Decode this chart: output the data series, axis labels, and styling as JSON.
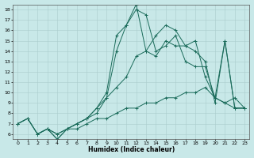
{
  "title": "",
  "xlabel": "Humidex (Indice chaleur)",
  "xlim": [
    -0.5,
    23.5
  ],
  "ylim": [
    5.5,
    18.5
  ],
  "yticks": [
    6,
    7,
    8,
    9,
    10,
    11,
    12,
    13,
    14,
    15,
    16,
    17,
    18
  ],
  "xticks": [
    0,
    1,
    2,
    3,
    4,
    5,
    6,
    7,
    8,
    9,
    10,
    11,
    12,
    13,
    14,
    15,
    16,
    17,
    18,
    19,
    20,
    21,
    22,
    23
  ],
  "bg_color": "#c8e8e8",
  "grid_color": "#aacccc",
  "line_color": "#1a6b5a",
  "lines": [
    {
      "x": [
        0,
        1,
        2,
        3,
        4,
        5,
        6,
        7,
        8,
        9,
        10,
        11,
        12,
        13,
        14,
        15,
        16,
        17,
        18,
        19,
        20,
        21,
        22,
        23
      ],
      "y": [
        7.0,
        7.5,
        6.0,
        6.5,
        6.0,
        6.5,
        6.5,
        7.0,
        7.5,
        7.5,
        8.0,
        8.5,
        8.5,
        9.0,
        9.0,
        9.5,
        9.5,
        10.0,
        10.0,
        10.5,
        9.5,
        9.0,
        8.5,
        8.5
      ]
    },
    {
      "x": [
        2,
        3,
        4,
        5,
        6,
        7,
        8,
        9,
        10,
        11,
        12,
        13,
        14,
        15,
        16,
        17,
        18,
        19,
        20,
        21,
        22,
        23
      ],
      "y": [
        6.0,
        6.5,
        5.5,
        6.5,
        7.0,
        7.5,
        8.5,
        9.5,
        10.5,
        11.5,
        13.5,
        14.0,
        13.5,
        15.0,
        14.5,
        14.5,
        15.0,
        11.5,
        9.5,
        15.0,
        8.5,
        8.5
      ]
    },
    {
      "x": [
        0,
        1,
        2,
        3,
        4,
        5,
        6,
        7,
        8,
        9,
        10,
        11,
        12,
        13,
        14,
        15,
        16,
        17,
        18,
        19,
        20,
        21,
        22,
        23
      ],
      "y": [
        7.0,
        7.5,
        6.0,
        6.5,
        5.5,
        6.5,
        7.0,
        7.5,
        8.5,
        10.0,
        15.5,
        16.5,
        18.5,
        14.0,
        15.5,
        16.5,
        16.0,
        14.5,
        14.0,
        13.0,
        9.0,
        15.0,
        8.5,
        8.5
      ]
    },
    {
      "x": [
        0,
        1,
        2,
        3,
        4,
        5,
        6,
        7,
        8,
        9,
        10,
        11,
        12,
        13,
        14,
        15,
        16,
        17,
        18,
        19,
        20,
        21,
        22,
        23
      ],
      "y": [
        7.0,
        7.5,
        6.0,
        6.5,
        6.0,
        6.5,
        7.0,
        7.5,
        8.0,
        9.5,
        14.0,
        16.5,
        18.0,
        17.5,
        14.0,
        14.5,
        15.5,
        13.0,
        12.5,
        12.5,
        9.5,
        9.0,
        9.5,
        8.5
      ]
    }
  ]
}
